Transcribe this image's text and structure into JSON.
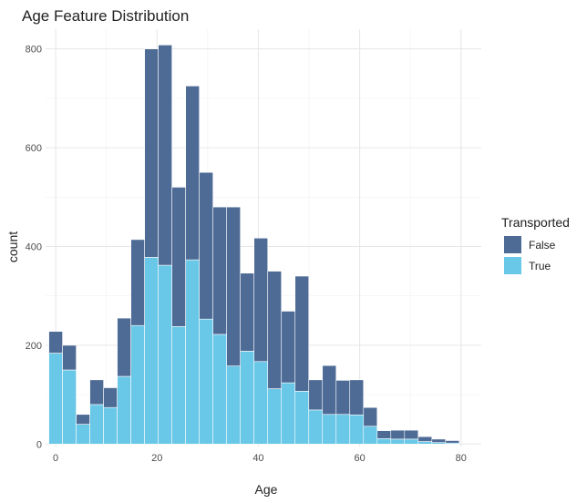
{
  "chart_data": {
    "type": "bar",
    "subtype": "stacked-histogram",
    "title": "Age Feature Distribution",
    "xlabel": "Age",
    "ylabel": "count",
    "legend": {
      "title": "Transported",
      "position": "right"
    },
    "bin_width": 2.7,
    "x": [
      0.0,
      2.7,
      5.4,
      8.1,
      10.8,
      13.5,
      16.2,
      18.9,
      21.6,
      24.3,
      27.0,
      29.7,
      32.4,
      35.1,
      37.8,
      40.5,
      43.2,
      45.9,
      48.6,
      51.3,
      54.0,
      56.7,
      59.4,
      62.1,
      64.8,
      67.5,
      70.2,
      72.9,
      75.6,
      78.3
    ],
    "series": [
      {
        "name": "True",
        "color": "#69C7E7",
        "values": [
          184,
          150,
          40,
          80,
          74,
          137,
          240,
          378,
          362,
          238,
          373,
          253,
          222,
          158,
          188,
          167,
          112,
          124,
          107,
          69,
          60,
          60,
          59,
          36,
          11,
          10,
          10,
          5,
          3,
          2
        ]
      },
      {
        "name": "False",
        "color": "#4E6B96",
        "values": [
          44,
          50,
          20,
          50,
          40,
          118,
          174,
          422,
          446,
          282,
          352,
          297,
          258,
          322,
          158,
          250,
          238,
          145,
          233,
          61,
          99,
          69,
          71,
          38,
          16,
          18,
          18,
          10,
          7,
          5
        ]
      }
    ],
    "xlim": [
      -2,
      84
    ],
    "ylim": [
      -5,
      840
    ],
    "x_ticks": [
      0,
      20,
      40,
      60,
      80
    ],
    "y_ticks": [
      0,
      200,
      400,
      600,
      800
    ],
    "grid": true
  }
}
